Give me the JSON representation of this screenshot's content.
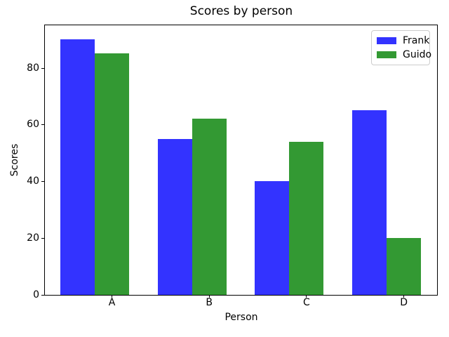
{
  "chart_data": {
    "type": "bar",
    "title": "Scores by person",
    "xlabel": "Person",
    "ylabel": "Scores",
    "categories": [
      "A",
      "B",
      "C",
      "D"
    ],
    "series": [
      {
        "name": "Frank",
        "color": "#3333ff",
        "values": [
          90,
          55,
          40,
          65
        ]
      },
      {
        "name": "Guido",
        "color": "#339933",
        "values": [
          85,
          62,
          54,
          20
        ]
      }
    ],
    "ylim": [
      0,
      95
    ],
    "yticks": [
      0,
      20,
      40,
      60,
      80
    ],
    "grid": false,
    "legend_position": "upper right"
  }
}
